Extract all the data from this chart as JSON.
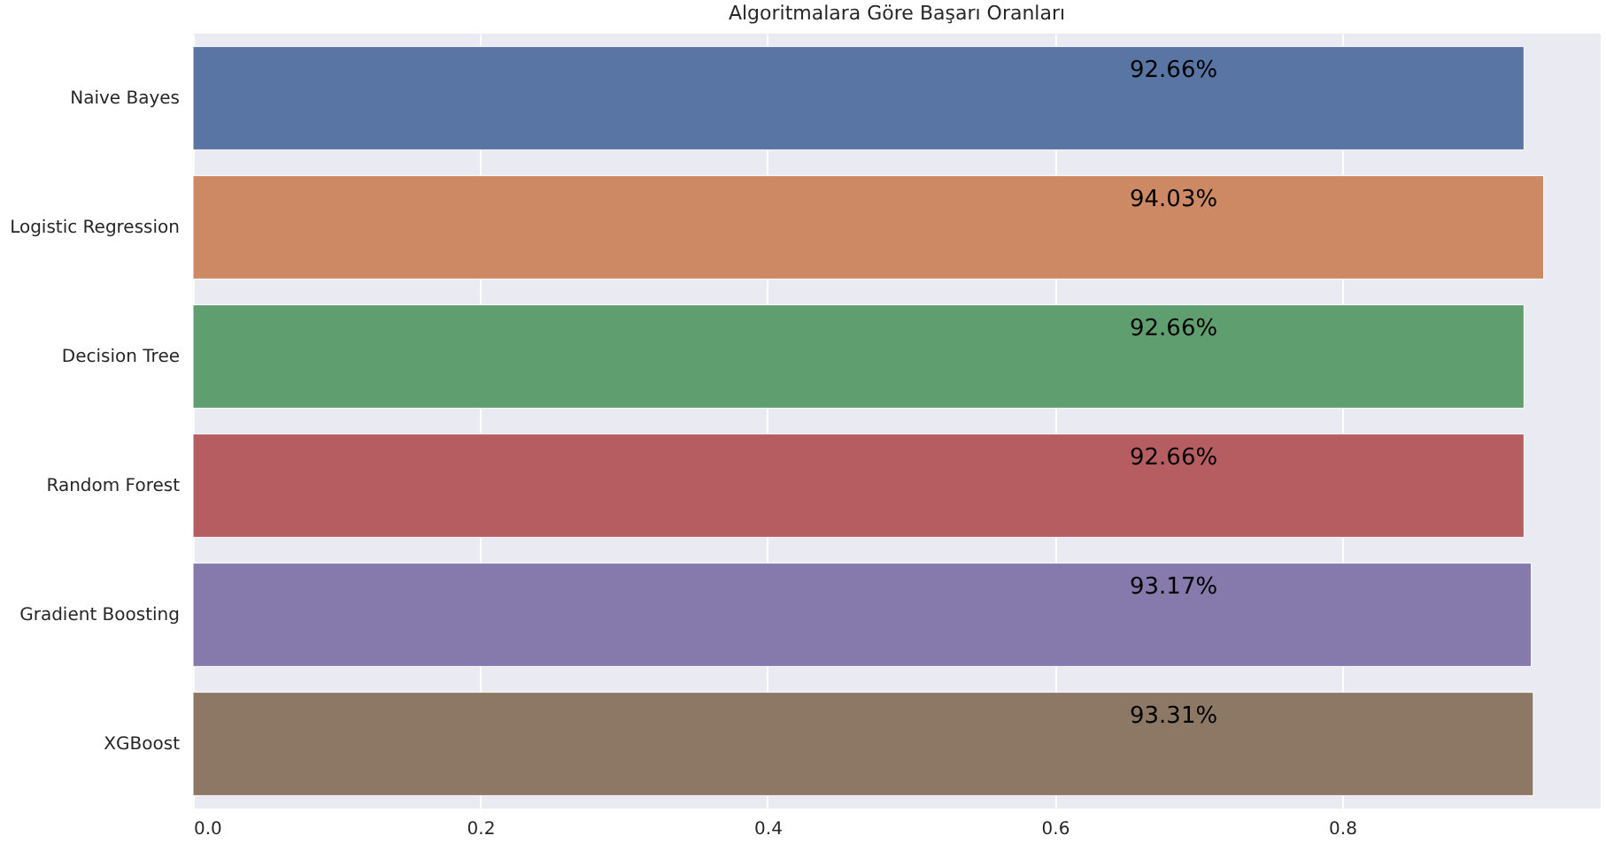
{
  "chart_data": {
    "type": "bar",
    "orientation": "horizontal",
    "title": "Algoritmalara Göre Başarı Oranları",
    "categories": [
      "Naive Bayes",
      "Logistic Regression",
      "Decision Tree",
      "Random Forest",
      "Gradient Boosting",
      "XGBoost"
    ],
    "values": [
      0.9266,
      0.9403,
      0.9266,
      0.9266,
      0.9317,
      0.9331
    ],
    "colors": [
      "#5875a4",
      "#cc8963",
      "#5f9e6e",
      "#b55d60",
      "#857aab",
      "#8d7866"
    ],
    "value_labels": [
      "92.66%",
      "94.03%",
      "92.66%",
      "92.66%",
      "93.17%",
      "93.31%"
    ],
    "xlim": [
      0,
      0.98
    ],
    "xticks": [
      {
        "value": 0,
        "label": "0.0"
      },
      0.2,
      0.4,
      0.6,
      0.8
    ],
    "grid": "x"
  }
}
